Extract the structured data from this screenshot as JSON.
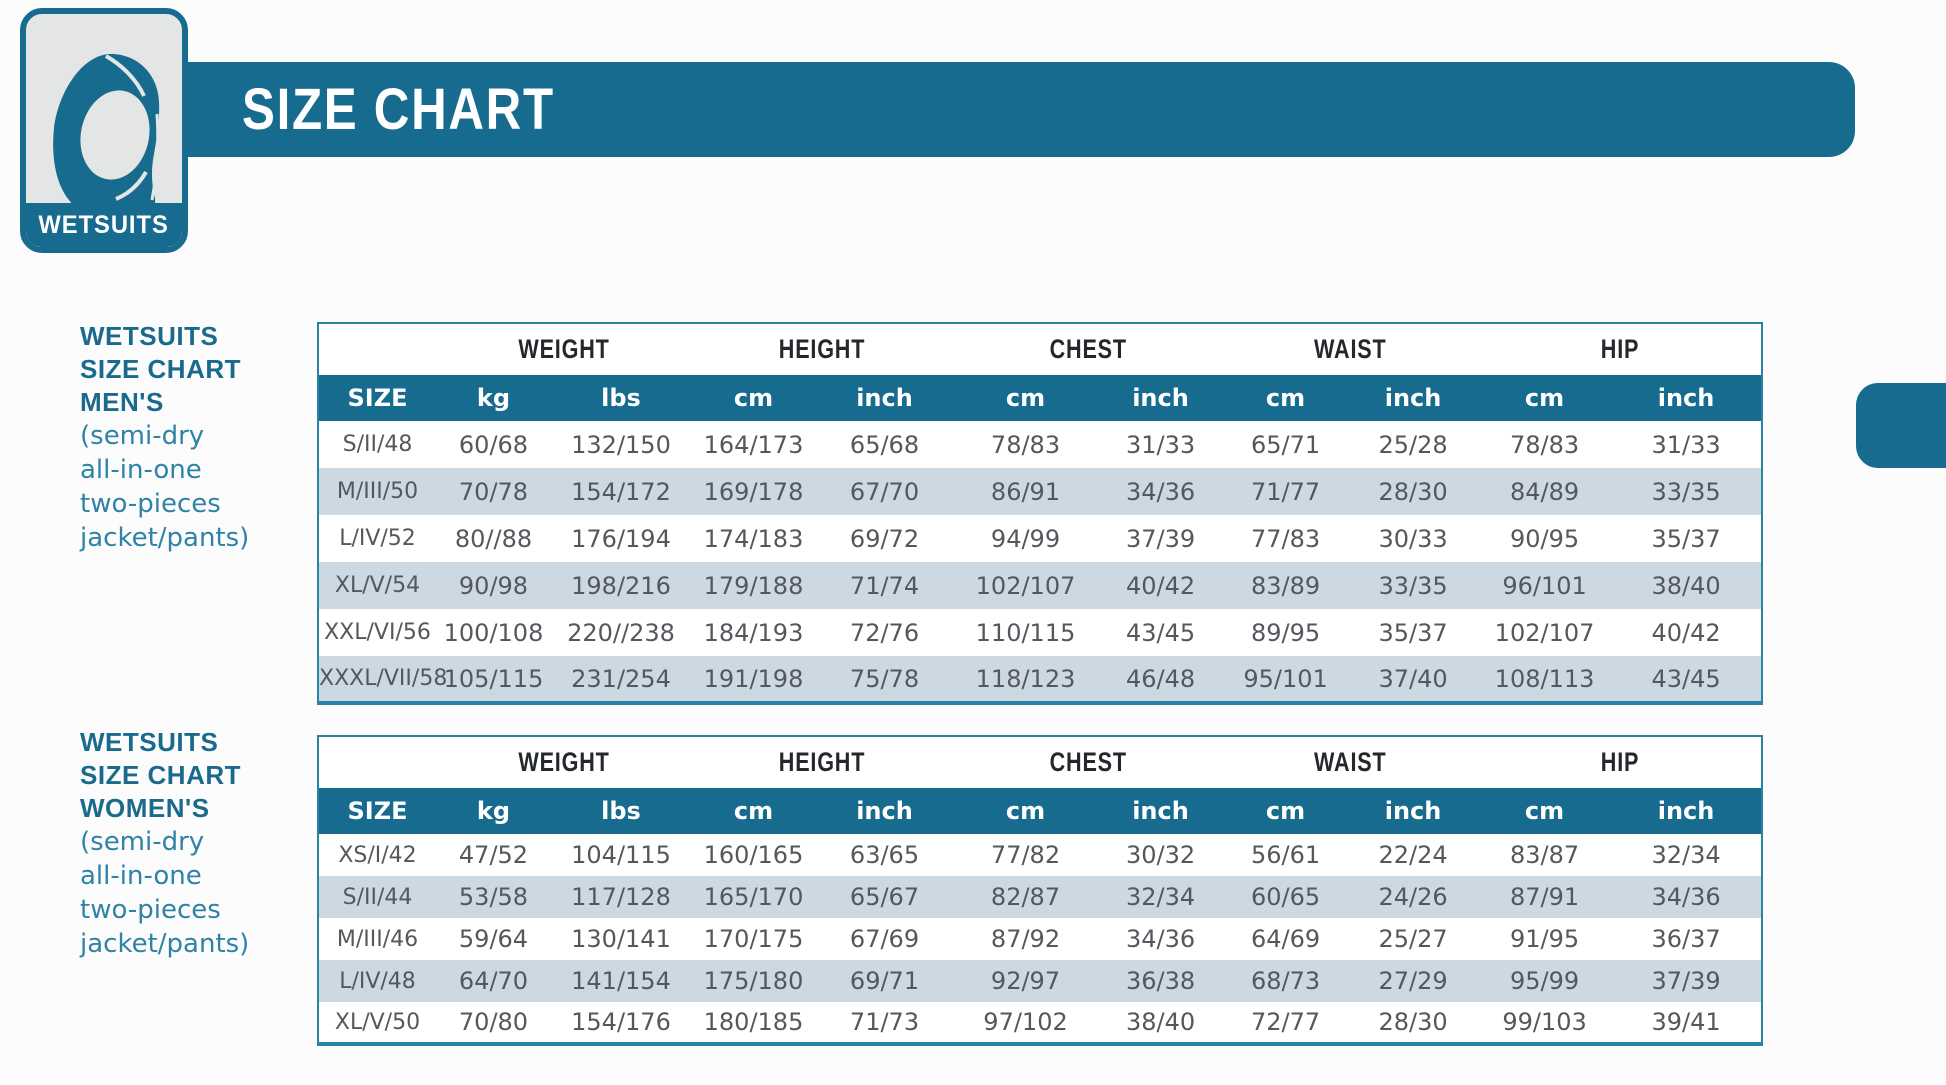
{
  "badge": {
    "label": "WETSUITS"
  },
  "banner": {
    "title": "SIZE CHART"
  },
  "colors": {
    "teal": "#176b8e",
    "row_alt": "#ccd9e2",
    "badge_bg": "#e3e6e5"
  },
  "tables": [
    {
      "title_lines": [
        "WETSUITS",
        "SIZE CHART",
        "MEN'S"
      ],
      "subtitle_lines": [
        "(semi-dry",
        "all-in-one",
        "two-pieces",
        "jacket/pants)"
      ],
      "group_headers": [
        "WEIGHT",
        "HEIGHT",
        "CHEST",
        "WAIST",
        "HIP"
      ],
      "columns": [
        "SIZE",
        "kg",
        "lbs",
        "cm",
        "inch",
        "cm",
        "inch",
        "cm",
        "inch",
        "cm",
        "inch"
      ],
      "rows": [
        [
          "S/II/48",
          "60/68",
          "132/150",
          "164/173",
          "65/68",
          "78/83",
          "31/33",
          "65/71",
          "25/28",
          "78/83",
          "31/33"
        ],
        [
          "M/III/50",
          "70/78",
          "154/172",
          "169/178",
          "67/70",
          "86/91",
          "34/36",
          "71/77",
          "28/30",
          "84/89",
          "33/35"
        ],
        [
          "L/IV/52",
          "80//88",
          "176/194",
          "174/183",
          "69/72",
          "94/99",
          "37/39",
          "77/83",
          "30/33",
          "90/95",
          "35/37"
        ],
        [
          "XL/V/54",
          "90/98",
          "198/216",
          "179/188",
          "71/74",
          "102/107",
          "40/42",
          "83/89",
          "33/35",
          "96/101",
          "38/40"
        ],
        [
          "XXL/VI/56",
          "100/108",
          "220//238",
          "184/193",
          "72/76",
          "110/115",
          "43/45",
          "89/95",
          "35/37",
          "102/107",
          "40/42"
        ],
        [
          "XXXL/VII/58",
          "105/115",
          "231/254",
          "191/198",
          "75/78",
          "118/123",
          "46/48",
          "95/101",
          "37/40",
          "108/113",
          "43/45"
        ]
      ]
    },
    {
      "title_lines": [
        "WETSUITS",
        "SIZE CHART",
        "WOMEN'S"
      ],
      "subtitle_lines": [
        "(semi-dry",
        "all-in-one",
        "two-pieces",
        "jacket/pants)"
      ],
      "group_headers": [
        "WEIGHT",
        "HEIGHT",
        "CHEST",
        "WAIST",
        "HIP"
      ],
      "columns": [
        "SIZE",
        "kg",
        "lbs",
        "cm",
        "inch",
        "cm",
        "inch",
        "cm",
        "inch",
        "cm",
        "inch"
      ],
      "rows": [
        [
          "XS/I/42",
          "47/52",
          "104/115",
          "160/165",
          "63/65",
          "77/82",
          "30/32",
          "56/61",
          "22/24",
          "83/87",
          "32/34"
        ],
        [
          "S/II/44",
          "53/58",
          "117/128",
          "165/170",
          "65/67",
          "82/87",
          "32/34",
          "60/65",
          "24/26",
          "87/91",
          "34/36"
        ],
        [
          "M/III/46",
          "59/64",
          "130/141",
          "170/175",
          "67/69",
          "87/92",
          "34/36",
          "64/69",
          "25/27",
          "91/95",
          "36/37"
        ],
        [
          "L/IV/48",
          "64/70",
          "141/154",
          "175/180",
          "69/71",
          "92/97",
          "36/38",
          "68/73",
          "27/29",
          "95/99",
          "37/39"
        ],
        [
          "XL/V/50",
          "70/80",
          "154/176",
          "180/185",
          "71/73",
          "97/102",
          "38/40",
          "72/77",
          "28/30",
          "99/103",
          "39/41"
        ]
      ]
    }
  ]
}
